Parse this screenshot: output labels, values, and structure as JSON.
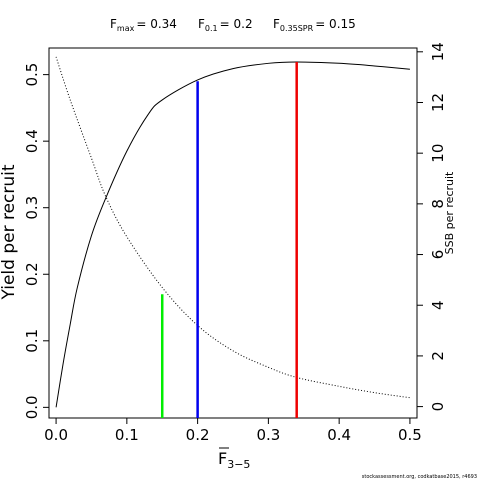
{
  "reference_points": [
    {
      "symbol": "F",
      "subscript": "max",
      "value": "= 0.34"
    },
    {
      "symbol": "F",
      "subscript": "0.1",
      "value": "= 0.2"
    },
    {
      "symbol": "F",
      "subscript": "0.35SPR",
      "value": "= 0.15"
    }
  ],
  "credit": "stockassessment.org, codkatbase2015, r4693",
  "chart_data": {
    "type": "line",
    "title": "",
    "xlabel": {
      "main": "F",
      "subscript": "3−5",
      "overline": true
    },
    "ylabel": "Yield per recruit",
    "y2label": "SSB per recruit",
    "xlim": [
      -0.01,
      0.51
    ],
    "ylim": [
      -0.016,
      0.54
    ],
    "y2lim": [
      -0.45,
      14.15
    ],
    "xticks": [
      0.0,
      0.1,
      0.2,
      0.3,
      0.4,
      0.5
    ],
    "xtick_labels": [
      "0.0",
      "0.1",
      "0.2",
      "0.3",
      "0.4",
      "0.5"
    ],
    "yticks": [
      0.0,
      0.1,
      0.2,
      0.3,
      0.4,
      0.5
    ],
    "ytick_labels": [
      "0.0",
      "0.1",
      "0.2",
      "0.3",
      "0.4",
      "0.5"
    ],
    "y2ticks": [
      0,
      2,
      4,
      6,
      8,
      10,
      12,
      14
    ],
    "y2tick_labels": [
      "0",
      "2",
      "4",
      "6",
      "8",
      "10",
      "12",
      "14"
    ],
    "grid": false,
    "series": [
      {
        "axis": "left",
        "style": "solid",
        "color": "#000000",
        "x": [
          0.0,
          0.01,
          0.02,
          0.03,
          0.05,
          0.07,
          0.1,
          0.13,
          0.15,
          0.2,
          0.25,
          0.3,
          0.34,
          0.4,
          0.45,
          0.5
        ],
        "y": [
          0.0,
          0.066,
          0.125,
          0.18,
          0.258,
          0.314,
          0.385,
          0.44,
          0.462,
          0.492,
          0.509,
          0.517,
          0.519,
          0.517,
          0.513,
          0.508
        ]
      },
      {
        "axis": "right",
        "style": "dotted",
        "color": "#000000",
        "x": [
          0.0,
          0.02,
          0.05,
          0.07,
          0.1,
          0.15,
          0.2,
          0.25,
          0.3,
          0.34,
          0.4,
          0.45,
          0.5
        ],
        "y": [
          13.8,
          12.1,
          9.8,
          8.3,
          6.7,
          4.7,
          3.2,
          2.2,
          1.55,
          1.15,
          0.8,
          0.55,
          0.35
        ]
      }
    ],
    "vlines": [
      {
        "x": 0.15,
        "y_end": 0.17,
        "axis": "left",
        "color": "#00ee00"
      },
      {
        "x": 0.2,
        "y_end": 0.49,
        "axis": "left",
        "color": "#0000ee"
      },
      {
        "x": 0.34,
        "y_end": 0.519,
        "axis": "left",
        "color": "#ee0000"
      }
    ]
  }
}
